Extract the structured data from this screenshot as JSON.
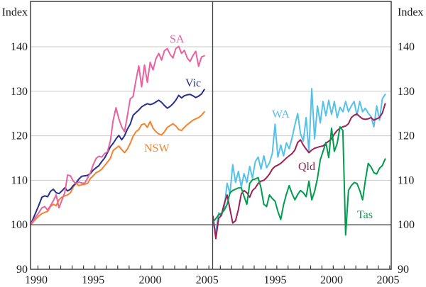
{
  "figure": {
    "ylabel_left": "Index",
    "ylabel_right": "Index"
  },
  "chart_data": {
    "type": "line",
    "frequency": "quarterly",
    "x_start": 1990.0,
    "x_step": 0.25,
    "x_end": 2005.25,
    "ylim": [
      90,
      150
    ],
    "ylabel": "Index",
    "grid": true,
    "baseline_value": 100,
    "yticks": [
      140,
      130,
      120,
      110,
      100,
      90
    ],
    "ytick_labels": [
      "140",
      "130",
      "120",
      "110",
      "100",
      "90"
    ],
    "panels": [
      {
        "id": "left",
        "xtick_years": [
          1990,
          1995,
          2000,
          2005
        ],
        "xtick_labels": [
          "1990",
          "1995",
          "2000",
          "2005"
        ],
        "series": [
          {
            "name": "NSW",
            "color": "#F5822C",
            "values": [
              100,
              100.7,
              101.4,
              102,
              102.5,
              102.8,
              103,
              104.1,
              104.6,
              104.3,
              105.6,
              106.2,
              106.5,
              106.7,
              107.2,
              108.5,
              109.3,
              108.8,
              109,
              109.1,
              109.3,
              110.4,
              111,
              111.7,
              112,
              112.5,
              113.3,
              114.1,
              114.9,
              116.7,
              117.2,
              117.7,
              116.9,
              116.2,
              117,
              118.3,
              119.9,
              120.9,
              121.4,
              122.5,
              122.7,
              121.9,
              123.2,
              121.7,
              120.9,
              120.4,
              120.2,
              120.9,
              121.9,
              122.3,
              122.7,
              122.2,
              121.4,
              121.2,
              121.9,
              122.5,
              123,
              123.5,
              123.8,
              124.1,
              124.6,
              125.4
            ]
          },
          {
            "name": "Vic",
            "color": "#282E8F",
            "values": [
              100,
              101.5,
              103,
              104.5,
              106.2,
              106.5,
              106.3,
              107.5,
              108,
              107.2,
              107,
              107.6,
              108.3,
              107.6,
              108,
              108.8,
              109.4,
              110.3,
              110.9,
              111,
              111.1,
              111.5,
              112.3,
              112.8,
              113.3,
              114.2,
              115,
              116.2,
              117.5,
              118.3,
              119.3,
              120.1,
              119.1,
              120,
              121.5,
              122.6,
              124.6,
              125.2,
              125.8,
              126.5,
              126.9,
              127.2,
              127,
              127.2,
              127.6,
              128,
              127.5,
              126.8,
              126.2,
              126.6,
              127.2,
              128,
              129.1,
              128.5,
              129,
              129.2,
              129.3,
              129,
              128.6,
              128.9,
              129.4,
              130.4
            ]
          },
          {
            "name": "SA",
            "color": "#E8639E",
            "values": [
              100,
              101,
              101.9,
              102.8,
              103.8,
              104.1,
              103.3,
              104.3,
              105.4,
              106.7,
              103.8,
              105.5,
              107.2,
              111.2,
              111,
              109.8,
              109.3,
              109.6,
              109.4,
              109.3,
              110.5,
              111.7,
              113.5,
              114.9,
              115.4,
              115.2,
              116,
              116.4,
              118.8,
              123.5,
              126.3,
              123.8,
              122,
              120.9,
              124.5,
              128.3,
              128.8,
              132.5,
              135.7,
              131,
              135.9,
              132,
              136.5,
              134.8,
              137.3,
              138.5,
              137,
              139.1,
              139.6,
              138.3,
              137.5,
              139.6,
              140.1,
              138.5,
              139.2,
              137.5,
              136.7,
              138,
              139,
              135.6,
              137.7,
              138
            ]
          }
        ]
      },
      {
        "id": "right",
        "xtick_years": [
          1995,
          2000,
          2005
        ],
        "xtick_labels": [
          "1995",
          "2000",
          "2005"
        ],
        "series": [
          {
            "name": "WA",
            "color": "#55C1E8",
            "values": [
              100.4,
              98.3,
              102.7,
              102,
              104,
              109.3,
              107,
              113.5,
              109.5,
              112,
              108.5,
              111.5,
              109.5,
              113.1,
              110.5,
              114.2,
              115.2,
              112.5,
              115.5,
              112.8,
              113.9,
              116,
              122.6,
              115.2,
              117.9,
              115.5,
              118.4,
              117.1,
              119.5,
              122.4,
              125,
              120.5,
              118.8,
              124.1,
              116.4,
              130.6,
              119.3,
              126.7,
              122.9,
              127.7,
              124.5,
              128,
              124.8,
              127.7,
              124.1,
              126.4,
              125.4,
              127.7,
              125.4,
              126.7,
              127.7,
              124.6,
              127.7,
              125.4,
              126.2,
              125.1,
              124.3,
              122,
              126.7,
              123.5,
              128.3,
              129.3
            ]
          },
          {
            "name": "Qld",
            "color": "#9B2154",
            "values": [
              101.9,
              96.9,
              101.4,
              102.2,
              104.8,
              106.7,
              103.5,
              100.4,
              100.9,
              103.5,
              106.9,
              107.7,
              107.2,
              106.2,
              107.7,
              108.3,
              109.3,
              109.8,
              110,
              110.6,
              111.4,
              112.5,
              113.1,
              113.4,
              113.8,
              114.4,
              115,
              115.5,
              116,
              116.8,
              118.5,
              119.1,
              117.9,
              117,
              116.2,
              116.8,
              117.2,
              117.4,
              117.6,
              117.7,
              118.3,
              118.8,
              119.3,
              120.4,
              121.2,
              121.7,
              122,
              122.2,
              122.7,
              124.1,
              124.6,
              124.9,
              124.3,
              123.8,
              123.7,
              123.8,
              124.1,
              123.5,
              123.8,
              124.1,
              125.1,
              127.2
            ]
          },
          {
            "name": "Tas",
            "color": "#009C4D",
            "values": [
              100.6,
              101.4,
              102.2,
              102.6,
              103.3,
              104.6,
              107.2,
              107.7,
              108,
              108.3,
              108.3,
              106.4,
              104.6,
              109.3,
              110.1,
              110.3,
              110.6,
              108.3,
              104.6,
              104.1,
              106.7,
              105.9,
              105.3,
              103,
              101.2,
              104.5,
              106.9,
              108.8,
              107,
              105.6,
              106.8,
              107.7,
              107.2,
              106.3,
              109.8,
              105.6,
              107.5,
              110.4,
              114.6,
              116.5,
              118.5,
              115.1,
              121.7,
              116.5,
              118.3,
              122,
              121.2,
              97.7,
              107.7,
              108.8,
              109.5,
              109.3,
              107.7,
              105.6,
              110,
              113.8,
              113,
              111.7,
              111.4,
              112.7,
              113.3,
              114.8
            ]
          }
        ]
      }
    ]
  }
}
